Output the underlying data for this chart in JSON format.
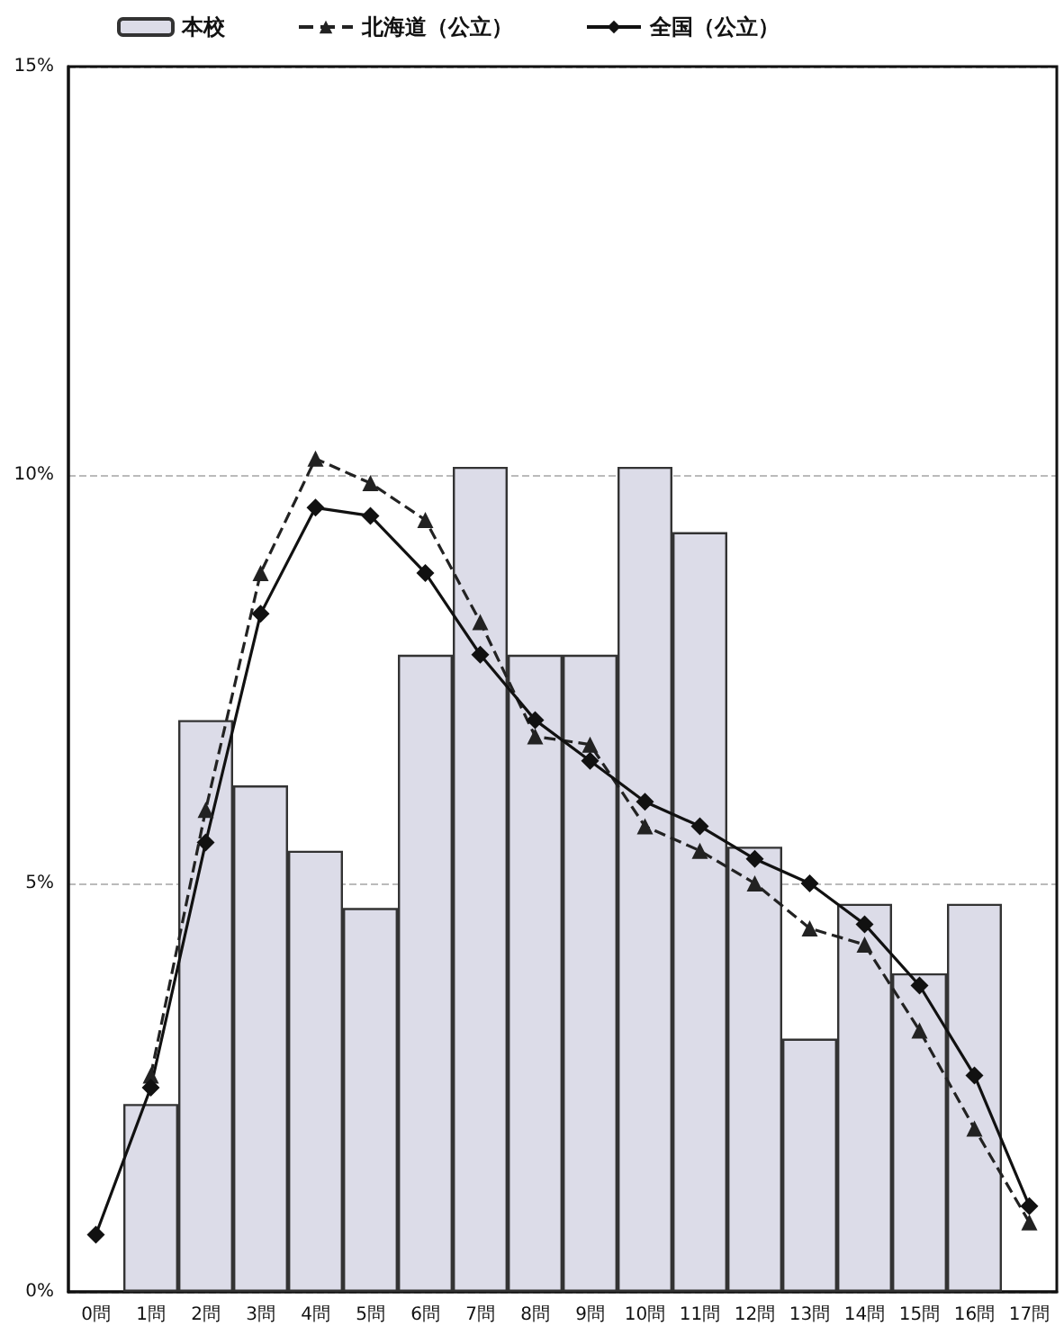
{
  "chart_data": {
    "type": "bar",
    "categories": [
      "0問",
      "1問",
      "2問",
      "3問",
      "4問",
      "5問",
      "6問",
      "7問",
      "8問",
      "9問",
      "10問",
      "11問",
      "12問",
      "13問",
      "14問",
      "15問",
      "16問",
      "17問"
    ],
    "series": [
      {
        "name": "本校",
        "color": "#dcdce8",
        "values": [
          null,
          2.3,
          7.0,
          6.2,
          5.4,
          4.7,
          7.8,
          10.1,
          7.8,
          7.8,
          10.1,
          9.3,
          5.45,
          3.1,
          4.75,
          3.9,
          4.75,
          null
        ]
      },
      {
        "name": "北海道（公立）",
        "type": "line",
        "color": "#222222",
        "marker": "triangle",
        "line_style": "dashed",
        "values": [
          null,
          2.65,
          5.9,
          8.8,
          10.2,
          9.9,
          9.45,
          8.2,
          6.8,
          6.7,
          5.7,
          5.4,
          5.0,
          4.45,
          4.25,
          3.2,
          2.0,
          0.85
        ]
      },
      {
        "name": "全国（公立）",
        "type": "line",
        "color": "#111111",
        "marker": "diamond",
        "line_style": "solid",
        "values": [
          0.7,
          2.5,
          5.5,
          8.3,
          9.6,
          9.5,
          8.8,
          7.8,
          7.0,
          6.5,
          6.0,
          5.7,
          5.3,
          5.0,
          4.5,
          3.75,
          2.65,
          1.05
        ]
      }
    ],
    "ylim": [
      0,
      15
    ],
    "yticks": [
      {
        "value": 0,
        "label": "0%"
      },
      {
        "value": 5,
        "label": "5%"
      },
      {
        "value": 10,
        "label": "10%"
      },
      {
        "value": 15,
        "label": "15%"
      }
    ],
    "grid": "y",
    "legend": "top left"
  }
}
